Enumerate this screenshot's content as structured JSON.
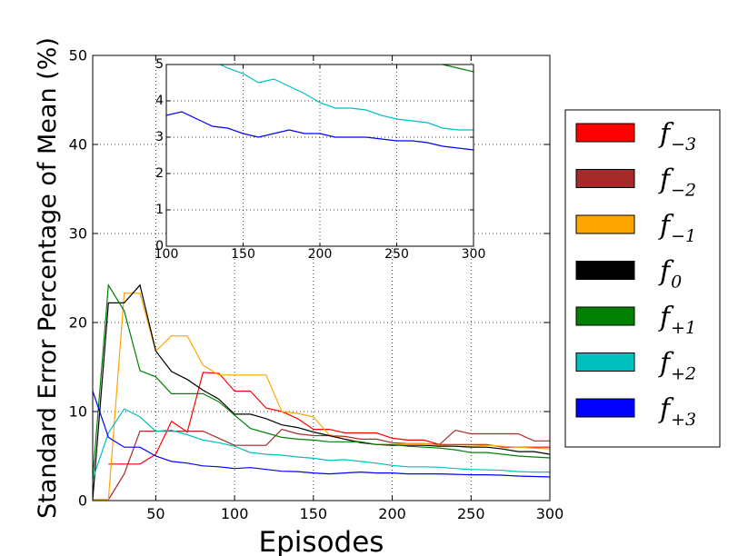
{
  "chart_data": [
    {
      "id": "main",
      "type": "line",
      "title": "",
      "xlabel": "Episodes",
      "ylabel": "Standard Error Percentage of Mean (%)",
      "xlim": [
        10,
        300
      ],
      "ylim": [
        0,
        50
      ],
      "xticks": [
        50,
        100,
        150,
        200,
        250,
        300
      ],
      "yticks": [
        0,
        10,
        20,
        30,
        40,
        50
      ],
      "grid": true,
      "grid_style": "dotted",
      "legend_position": "outside-right",
      "series": [
        {
          "name": "f",
          "sub": "−3",
          "color": "#ff0000",
          "x": [
            20,
            30,
            40,
            50,
            60,
            70,
            80,
            90,
            100,
            110,
            120,
            130,
            140,
            150,
            160,
            170,
            180,
            190,
            200,
            210,
            220,
            230,
            240,
            250,
            260,
            270,
            280,
            290,
            300
          ],
          "y": [
            4.1,
            4.1,
            4.1,
            5.2,
            8.9,
            7.7,
            14.4,
            14.3,
            12.3,
            12.3,
            10.4,
            10.0,
            9.2,
            8.0,
            8.0,
            7.6,
            7.6,
            7.6,
            7.0,
            6.8,
            6.8,
            6.3,
            6.3,
            6.3,
            6.3,
            6.0,
            6.0,
            6.0,
            6.0
          ]
        },
        {
          "name": "f",
          "sub": "−2",
          "color": "#a52a2a",
          "x": [
            10,
            20,
            30,
            40,
            50,
            60,
            70,
            80,
            90,
            100,
            110,
            120,
            130,
            140,
            150,
            160,
            170,
            180,
            190,
            200,
            210,
            220,
            230,
            240,
            250,
            260,
            270,
            280,
            290,
            300
          ],
          "y": [
            0.1,
            0.1,
            3.0,
            7.8,
            7.8,
            7.8,
            7.8,
            7.8,
            7.0,
            6.2,
            6.2,
            6.2,
            8.0,
            7.5,
            7.3,
            7.3,
            7.2,
            6.9,
            6.9,
            6.5,
            6.4,
            6.4,
            6.3,
            7.9,
            7.5,
            7.5,
            7.5,
            7.5,
            6.7,
            6.7
          ]
        },
        {
          "name": "f",
          "sub": "−1",
          "color": "#ffa500",
          "x": [
            10,
            20,
            30,
            40,
            50,
            60,
            70,
            80,
            90,
            100,
            110,
            120,
            130,
            140,
            150,
            160,
            170,
            180,
            190,
            200,
            210,
            220,
            230,
            240,
            250,
            260,
            270,
            280,
            290,
            300
          ],
          "y": [
            0.1,
            0.1,
            23.3,
            23.3,
            16.8,
            18.5,
            18.5,
            15.2,
            14.1,
            14.1,
            14.1,
            14.1,
            10.0,
            9.8,
            9.4,
            7.4,
            6.9,
            6.6,
            6.3,
            6.3,
            6.4,
            6.4,
            6.2,
            6.1,
            6.1,
            6.2,
            6.1,
            6.0,
            5.9,
            5.8
          ]
        },
        {
          "name": "f",
          "sub": "0",
          "color": "#000000",
          "x": [
            10,
            20,
            30,
            40,
            50,
            60,
            70,
            80,
            90,
            100,
            110,
            120,
            130,
            140,
            150,
            160,
            170,
            180,
            190,
            200,
            210,
            220,
            230,
            240,
            250,
            260,
            270,
            280,
            290,
            300
          ],
          "y": [
            0.1,
            22.2,
            22.2,
            24.2,
            16.8,
            14.5,
            13.6,
            12.4,
            11.4,
            9.7,
            9.7,
            9.2,
            8.5,
            8.2,
            7.7,
            7.3,
            6.9,
            6.5,
            6.3,
            6.2,
            6.2,
            6.2,
            6.1,
            6.1,
            6.0,
            6.0,
            5.8,
            5.5,
            5.5,
            5.2
          ]
        },
        {
          "name": "f",
          "sub": "+1",
          "color": "#008000",
          "x": [
            10,
            20,
            30,
            40,
            50,
            60,
            70,
            80,
            90,
            100,
            110,
            120,
            130,
            140,
            150,
            160,
            170,
            180,
            190,
            200,
            210,
            220,
            230,
            240,
            250,
            260,
            270,
            280,
            290,
            300
          ],
          "y": [
            2.5,
            24.2,
            21.3,
            14.6,
            13.9,
            12.0,
            12.0,
            12.0,
            11.1,
            9.6,
            8.1,
            7.6,
            7.1,
            6.9,
            6.8,
            6.6,
            6.6,
            6.6,
            6.3,
            6.3,
            6.1,
            6.0,
            5.9,
            5.7,
            5.4,
            5.4,
            5.2,
            5.0,
            4.9,
            4.8
          ]
        },
        {
          "name": "f",
          "sub": "+2",
          "color": "#00bfbf",
          "x": [
            10,
            20,
            30,
            40,
            50,
            60,
            70,
            80,
            90,
            100,
            110,
            120,
            130,
            140,
            150,
            160,
            170,
            180,
            190,
            200,
            210,
            220,
            230,
            240,
            250,
            260,
            270,
            280,
            290,
            300
          ],
          "y": [
            2.4,
            7.6,
            10.3,
            9.4,
            7.8,
            7.9,
            7.4,
            6.8,
            6.5,
            6.1,
            5.4,
            5.2,
            5.1,
            4.9,
            4.75,
            4.5,
            4.6,
            4.4,
            4.2,
            3.95,
            3.8,
            3.8,
            3.75,
            3.6,
            3.5,
            3.45,
            3.4,
            3.25,
            3.2,
            3.2
          ]
        },
        {
          "name": "f",
          "sub": "+3",
          "color": "#0000ff",
          "x": [
            10,
            20,
            30,
            40,
            50,
            60,
            70,
            80,
            90,
            100,
            110,
            120,
            130,
            140,
            150,
            160,
            170,
            180,
            190,
            200,
            210,
            220,
            230,
            240,
            250,
            260,
            270,
            280,
            290,
            300
          ],
          "y": [
            12.3,
            7.1,
            6.0,
            6.0,
            5.0,
            4.4,
            4.2,
            3.9,
            3.8,
            3.6,
            3.7,
            3.5,
            3.3,
            3.25,
            3.1,
            3.0,
            3.1,
            3.2,
            3.1,
            3.1,
            3.0,
            3.0,
            3.0,
            2.95,
            2.9,
            2.9,
            2.85,
            2.75,
            2.7,
            2.65
          ]
        }
      ]
    },
    {
      "id": "inset",
      "type": "line",
      "title": "",
      "xlabel": "",
      "ylabel": "",
      "xlim": [
        100,
        300
      ],
      "ylim": [
        0,
        5
      ],
      "xticks": [
        100,
        150,
        200,
        250,
        300
      ],
      "yticks": [
        0,
        1,
        2,
        3,
        4,
        5
      ],
      "grid": true,
      "grid_style": "dotted",
      "series_from_main": [
        "f+1",
        "f+2",
        "f+3"
      ]
    }
  ]
}
